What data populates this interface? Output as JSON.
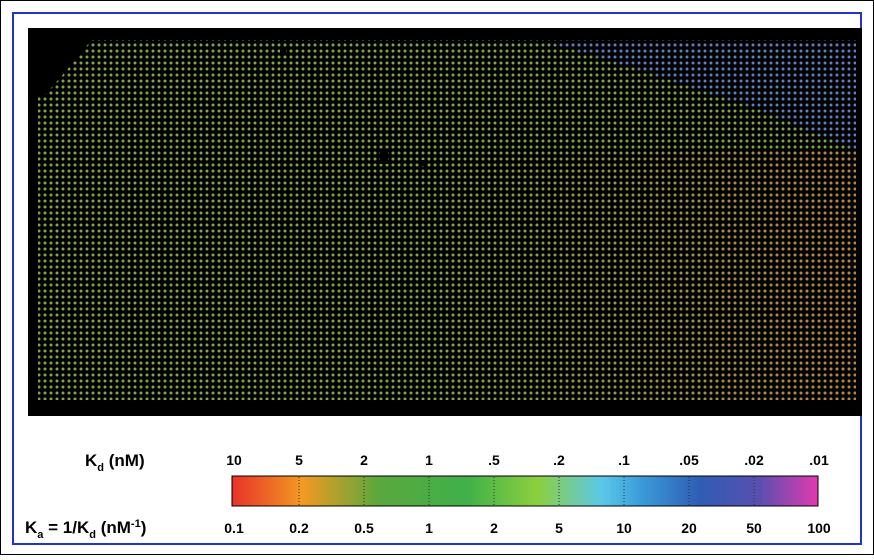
{
  "colorbar": {
    "kd_label": {
      "symbol": "K",
      "sub": "d",
      "unit": " (nM)"
    },
    "ka_label": {
      "symbol": "K",
      "sub": "a",
      "eq": " = 1/K",
      "sub2": "d",
      "unit": " (nM",
      "sup": "-1",
      "close": ")"
    },
    "kd_ticks": [
      "10",
      "5",
      "2",
      "1",
      ".5",
      ".2",
      ".1",
      ".05",
      ".02",
      ".01"
    ],
    "ka_ticks": [
      "0.1",
      "0.2",
      "0.5",
      "1",
      "2",
      "5",
      "10",
      "20",
      "50",
      "100"
    ]
  }
}
